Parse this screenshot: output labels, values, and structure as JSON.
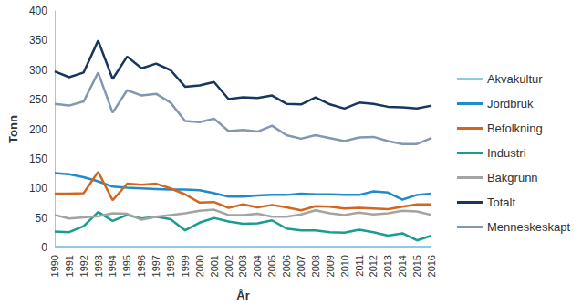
{
  "chart_data": {
    "type": "line",
    "x_label": "År",
    "y_label": "Tonn",
    "categories": [
      "1990",
      "1991",
      "1992",
      "1993",
      "1994",
      "1995",
      "1996",
      "1997",
      "1998",
      "1999",
      "2000",
      "2001",
      "2002",
      "2003",
      "2004",
      "2005",
      "2006",
      "2007",
      "2008",
      "2009",
      "2010",
      "2011",
      "2012",
      "2013",
      "2014",
      "2015",
      "2016"
    ],
    "series": [
      {
        "name": "Akvakultur",
        "color": "#8fcbe0",
        "values": [
          1,
          1,
          1,
          1,
          1,
          1,
          1,
          1,
          1,
          1,
          1,
          1,
          1,
          1,
          1,
          1,
          1,
          1,
          1,
          1,
          1,
          1,
          1,
          1,
          1,
          1,
          1
        ]
      },
      {
        "name": "Jordbruk",
        "color": "#1f8bc9",
        "values": [
          126,
          124,
          119,
          112,
          103,
          101,
          100,
          99,
          98,
          98,
          97,
          92,
          86,
          86,
          88,
          89,
          89,
          91,
          90,
          90,
          89,
          89,
          95,
          93,
          81,
          89,
          91
        ]
      },
      {
        "name": "Befolkning",
        "color": "#d4651c",
        "values": [
          91,
          91,
          92,
          128,
          80,
          108,
          106,
          108,
          100,
          90,
          76,
          77,
          67,
          73,
          68,
          72,
          68,
          63,
          70,
          69,
          66,
          67,
          66,
          65,
          69,
          73,
          73
        ]
      },
      {
        "name": "Industri",
        "color": "#1a9d8f",
        "values": [
          27,
          26,
          36,
          60,
          45,
          55,
          49,
          52,
          48,
          29,
          42,
          50,
          44,
          40,
          41,
          46,
          32,
          29,
          29,
          26,
          25,
          30,
          26,
          20,
          24,
          12,
          20
        ]
      },
      {
        "name": "Bakgrunn",
        "color": "#a3a3a3",
        "values": [
          55,
          49,
          51,
          53,
          58,
          57,
          47,
          52,
          55,
          58,
          62,
          64,
          55,
          55,
          57,
          52,
          52,
          56,
          63,
          58,
          55,
          59,
          56,
          58,
          62,
          61,
          55
        ]
      },
      {
        "name": "Totalt",
        "color": "#17375e",
        "values": [
          298,
          288,
          296,
          350,
          285,
          323,
          303,
          311,
          300,
          272,
          274,
          280,
          251,
          254,
          253,
          257,
          243,
          242,
          254,
          242,
          235,
          245,
          243,
          238,
          237,
          235,
          240
        ]
      },
      {
        "name": "Menneskeskapt",
        "color": "#8497b0",
        "values": [
          243,
          240,
          247,
          296,
          228,
          266,
          257,
          260,
          245,
          214,
          212,
          218,
          197,
          199,
          196,
          206,
          190,
          184,
          190,
          185,
          180,
          186,
          187,
          180,
          175,
          175,
          185
        ]
      }
    ],
    "ylim": [
      0,
      400
    ],
    "yticks": [
      0,
      50,
      100,
      150,
      200,
      250,
      300,
      350,
      400
    ],
    "grid": false,
    "legend": "right"
  }
}
